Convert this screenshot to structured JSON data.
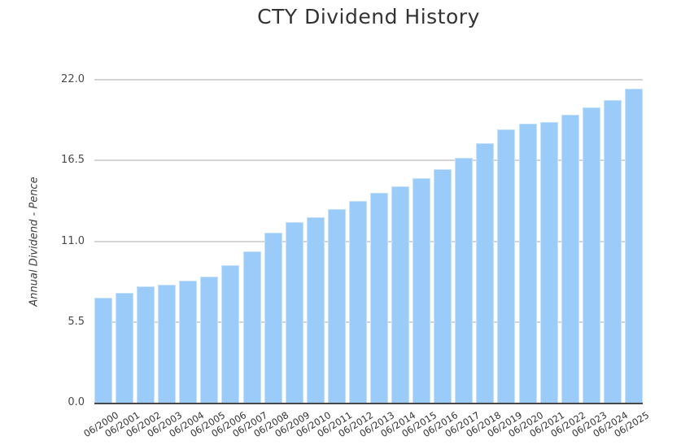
{
  "chart_data": {
    "type": "bar",
    "title": "CTY Dividend History",
    "ylabel": "Annual Dividend - Pence",
    "xlabel": "",
    "ylim": [
      0,
      22
    ],
    "yticks": [
      0,
      5.5,
      11,
      16.5,
      22
    ],
    "ytick_labels": [
      "0.0",
      "5.5",
      "11.0",
      "16.5",
      "22.0"
    ],
    "grid": true,
    "legend": false,
    "bar_color": "#9bcbf8",
    "bar_border_color": "#c6e1fb",
    "gridline_color": "#d4d4d4",
    "axis_line_color": "#474747",
    "categories": [
      "06/2000",
      "06/2001",
      "06/2002",
      "06/2003",
      "06/2004",
      "06/2005",
      "06/2006",
      "06/2007",
      "06/2008",
      "06/2009",
      "06/2010",
      "06/2011",
      "06/2012",
      "06/2013",
      "06/2014",
      "06/2015",
      "06/2016",
      "06/2017",
      "06/2018",
      "06/2019",
      "06/2020",
      "06/2021",
      "06/2022",
      "06/2023",
      "06/2024",
      "06/2025"
    ],
    "values": [
      7.16,
      7.46,
      7.91,
      8.06,
      8.31,
      8.61,
      9.35,
      10.3,
      11.58,
      12.32,
      12.66,
      13.2,
      13.74,
      14.3,
      14.76,
      15.3,
      15.9,
      16.7,
      17.7,
      18.6,
      19.0,
      19.1,
      19.6,
      20.1,
      20.6,
      21.4
    ]
  }
}
